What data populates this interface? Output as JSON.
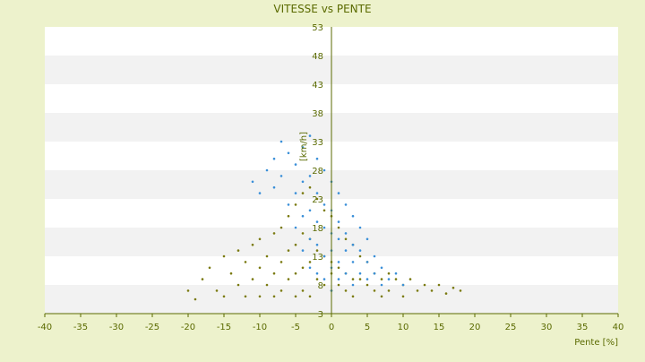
{
  "chart_data": {
    "type": "scatter",
    "title": "VITESSE vs PENTE",
    "xlabel": "Pente [%]",
    "ylabel": "[km/h]",
    "xlim": [
      -40,
      40
    ],
    "ylim": [
      3,
      53
    ],
    "x_ticks": [
      "-40",
      "-35",
      "-30",
      "-25",
      "-20",
      "-15",
      "-10",
      "-5",
      "0",
      "5",
      "10",
      "15",
      "20",
      "25",
      "30",
      "35",
      "40"
    ],
    "y_ticks": [
      "3",
      "8",
      "13",
      "18",
      "23",
      "28",
      "33",
      "38",
      "43",
      "48",
      "53"
    ],
    "grid": "alternating horizontal bands",
    "legend": "none",
    "colors": {
      "series_a": "#3a8fd8",
      "series_b": "#7a7a10",
      "axis": "#5a6a00",
      "text": "#5a6a00",
      "band": "#f2f2f2",
      "background": "#edf2cc"
    },
    "series": [
      {
        "color": "#7a7a10",
        "points": [
          [
            -20,
            7
          ],
          [
            -19,
            5.5
          ],
          [
            -18,
            9
          ],
          [
            -17,
            11
          ],
          [
            -16,
            7
          ],
          [
            -15,
            13
          ],
          [
            -15,
            6
          ],
          [
            -14,
            10
          ],
          [
            -13,
            8
          ],
          [
            -13,
            14
          ],
          [
            -12,
            12
          ],
          [
            -12,
            6
          ],
          [
            -11,
            15
          ],
          [
            -11,
            9
          ],
          [
            -10,
            16
          ],
          [
            -10,
            11
          ],
          [
            -10,
            6
          ],
          [
            -9,
            13
          ],
          [
            -9,
            8
          ],
          [
            -8,
            17
          ],
          [
            -8,
            10
          ],
          [
            -8,
            6
          ],
          [
            -7,
            18
          ],
          [
            -7,
            12
          ],
          [
            -7,
            7
          ],
          [
            -6,
            20
          ],
          [
            -6,
            14
          ],
          [
            -6,
            9
          ],
          [
            -5,
            22
          ],
          [
            -5,
            15
          ],
          [
            -5,
            10
          ],
          [
            -5,
            6
          ],
          [
            -4,
            24
          ],
          [
            -4,
            17
          ],
          [
            -4,
            11
          ],
          [
            -4,
            7
          ],
          [
            -3,
            25
          ],
          [
            -3,
            16
          ],
          [
            -3,
            12
          ],
          [
            -3,
            6
          ],
          [
            -2,
            23
          ],
          [
            -2,
            14
          ],
          [
            -2,
            9
          ],
          [
            -1,
            21
          ],
          [
            -1,
            13
          ],
          [
            -1,
            8
          ],
          [
            0,
            20
          ],
          [
            0,
            12
          ],
          [
            0,
            10
          ],
          [
            0,
            7
          ],
          [
            1,
            18
          ],
          [
            1,
            11
          ],
          [
            1,
            8
          ],
          [
            2,
            16
          ],
          [
            2,
            10
          ],
          [
            2,
            7
          ],
          [
            3,
            15
          ],
          [
            3,
            9
          ],
          [
            3,
            6
          ],
          [
            4,
            13
          ],
          [
            4,
            9
          ],
          [
            5,
            12
          ],
          [
            5,
            8
          ],
          [
            6,
            10
          ],
          [
            6,
            7
          ],
          [
            7,
            9
          ],
          [
            7,
            6
          ],
          [
            8,
            10
          ],
          [
            8,
            7
          ],
          [
            9,
            9
          ],
          [
            10,
            8
          ],
          [
            10,
            6
          ],
          [
            11,
            9
          ],
          [
            12,
            7
          ],
          [
            13,
            8
          ],
          [
            14,
            7
          ],
          [
            15,
            8
          ],
          [
            16,
            6.5
          ],
          [
            17,
            7.5
          ],
          [
            18,
            7
          ]
        ]
      },
      {
        "color": "#3a8fd8",
        "points": [
          [
            -11,
            26
          ],
          [
            -10,
            24
          ],
          [
            -9,
            28
          ],
          [
            -8,
            30
          ],
          [
            -8,
            25
          ],
          [
            -7,
            33
          ],
          [
            -7,
            27
          ],
          [
            -6,
            31
          ],
          [
            -6,
            22
          ],
          [
            -5,
            29
          ],
          [
            -5,
            24
          ],
          [
            -5,
            18
          ],
          [
            -4,
            32
          ],
          [
            -4,
            26
          ],
          [
            -4,
            20
          ],
          [
            -4,
            14
          ],
          [
            -3,
            34
          ],
          [
            -3,
            27
          ],
          [
            -3,
            21
          ],
          [
            -3,
            16
          ],
          [
            -3,
            11
          ],
          [
            -2,
            30
          ],
          [
            -2,
            24
          ],
          [
            -2,
            19
          ],
          [
            -2,
            15
          ],
          [
            -2,
            10
          ],
          [
            -1,
            28
          ],
          [
            -1,
            22
          ],
          [
            -1,
            18
          ],
          [
            -1,
            13
          ],
          [
            -1,
            9
          ],
          [
            0,
            26
          ],
          [
            0,
            21
          ],
          [
            0,
            17
          ],
          [
            0,
            14
          ],
          [
            0,
            11
          ],
          [
            0,
            7
          ],
          [
            1,
            24
          ],
          [
            1,
            19
          ],
          [
            1,
            16
          ],
          [
            1,
            12
          ],
          [
            1,
            9
          ],
          [
            2,
            22
          ],
          [
            2,
            17
          ],
          [
            2,
            14
          ],
          [
            2,
            10
          ],
          [
            3,
            20
          ],
          [
            3,
            15
          ],
          [
            3,
            12
          ],
          [
            3,
            8
          ],
          [
            4,
            18
          ],
          [
            4,
            14
          ],
          [
            4,
            10
          ],
          [
            5,
            16
          ],
          [
            5,
            12
          ],
          [
            5,
            9
          ],
          [
            6,
            13
          ],
          [
            6,
            10
          ],
          [
            7,
            11
          ],
          [
            7,
            8
          ],
          [
            8,
            9
          ],
          [
            9,
            10
          ],
          [
            10,
            8
          ]
        ]
      }
    ]
  }
}
